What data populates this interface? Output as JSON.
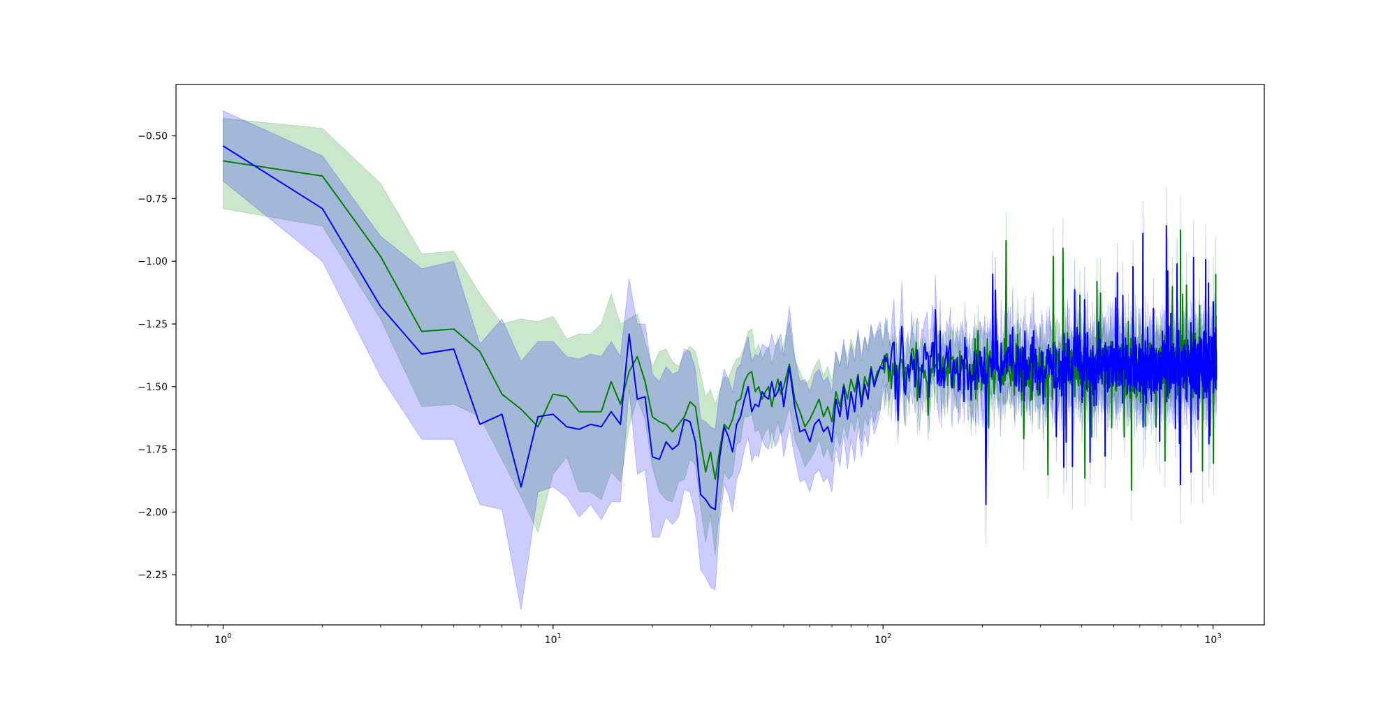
{
  "chart_data": {
    "type": "line",
    "title": "",
    "xlabel": "",
    "ylabel": "",
    "x_scale": "log",
    "xlim": [
      0.72,
      1430
    ],
    "ylim": [
      -2.45,
      -0.295
    ],
    "grid": false,
    "legend": "none",
    "y_ticks": [
      {
        "value": -0.5,
        "label": "−0.50"
      },
      {
        "value": -0.75,
        "label": "−0.75"
      },
      {
        "value": -1.0,
        "label": "−1.00"
      },
      {
        "value": -1.25,
        "label": "−1.25"
      },
      {
        "value": -1.5,
        "label": "−1.50"
      },
      {
        "value": -1.75,
        "label": "−1.75"
      },
      {
        "value": -2.0,
        "label": "−2.00"
      },
      {
        "value": -2.25,
        "label": "−2.25"
      }
    ],
    "x_ticks": [
      {
        "value": 1,
        "base": "10",
        "exp": "0"
      },
      {
        "value": 10,
        "base": "10",
        "exp": "1"
      },
      {
        "value": 100,
        "base": "10",
        "exp": "2"
      },
      {
        "value": 1000,
        "base": "10",
        "exp": "3"
      }
    ],
    "noise": {
      "start_x": 100,
      "end_x": 1024,
      "center": -1.42,
      "green": {
        "amplitude": 0.16,
        "band_halfwidth": 0.1,
        "seed": 7
      },
      "blue": {
        "amplitude": 0.19,
        "band_halfwidth": 0.12,
        "seed": 13
      }
    },
    "series": [
      {
        "color": "#008000",
        "band_color": "#008000",
        "band_opacity": 0.2,
        "x": [
          1,
          2,
          3,
          4,
          5,
          6,
          7,
          8,
          9,
          10,
          11,
          12,
          13,
          14,
          15,
          16,
          17,
          18,
          19,
          20,
          21,
          22,
          23,
          24,
          25,
          26,
          27,
          28,
          29,
          30,
          31,
          32,
          33,
          34,
          35,
          36,
          37,
          38,
          39,
          40,
          41,
          42,
          43,
          44,
          45,
          46,
          47,
          48,
          49,
          50,
          52,
          54,
          56,
          58,
          60,
          62,
          64,
          66,
          68,
          70,
          72,
          74,
          76,
          78,
          80,
          82,
          84,
          86,
          88,
          90,
          92,
          94,
          96,
          98
        ],
        "y": [
          -0.6,
          -0.66,
          -0.98,
          -1.28,
          -1.27,
          -1.36,
          -1.53,
          -1.59,
          -1.66,
          -1.53,
          -1.54,
          -1.6,
          -1.6,
          -1.6,
          -1.48,
          -1.57,
          -1.44,
          -1.38,
          -1.48,
          -1.62,
          -1.64,
          -1.65,
          -1.68,
          -1.65,
          -1.62,
          -1.56,
          -1.58,
          -1.72,
          -1.84,
          -1.76,
          -1.87,
          -1.75,
          -1.65,
          -1.67,
          -1.63,
          -1.56,
          -1.55,
          -1.48,
          -1.45,
          -1.44,
          -1.52,
          -1.5,
          -1.55,
          -1.52,
          -1.5,
          -1.58,
          -1.52,
          -1.47,
          -1.53,
          -1.5,
          -1.41,
          -1.55,
          -1.6,
          -1.66,
          -1.63,
          -1.59,
          -1.55,
          -1.62,
          -1.58,
          -1.64,
          -1.52,
          -1.58,
          -1.49,
          -1.55,
          -1.47,
          -1.52,
          -1.45,
          -1.56,
          -1.46,
          -1.5,
          -1.42,
          -1.49,
          -1.44,
          -1.43
        ],
        "upper": [
          -0.43,
          -0.47,
          -0.69,
          -0.97,
          -0.96,
          -1.13,
          -1.25,
          -1.23,
          -1.24,
          -1.22,
          -1.31,
          -1.29,
          -1.29,
          -1.25,
          -1.13,
          -1.25,
          -1.23,
          -1.21,
          -1.32,
          -1.42,
          -1.36,
          -1.35,
          -1.4,
          -1.42,
          -1.37,
          -1.34,
          -1.36,
          -1.45,
          -1.54,
          -1.51,
          -1.57,
          -1.52,
          -1.46,
          -1.47,
          -1.42,
          -1.39,
          -1.38,
          -1.34,
          -1.28,
          -1.27,
          -1.36,
          -1.33,
          -1.39,
          -1.36,
          -1.34,
          -1.41,
          -1.36,
          -1.3,
          -1.37,
          -1.33,
          -1.24,
          -1.39,
          -1.44,
          -1.49,
          -1.47,
          -1.42,
          -1.39,
          -1.46,
          -1.42,
          -1.48,
          -1.36,
          -1.42,
          -1.33,
          -1.39,
          -1.31,
          -1.36,
          -1.29,
          -1.4,
          -1.3,
          -1.34,
          -1.26,
          -1.33,
          -1.28,
          -1.27
        ],
        "lower": [
          -0.79,
          -0.86,
          -1.23,
          -1.58,
          -1.57,
          -1.62,
          -1.79,
          -1.94,
          -2.08,
          -1.85,
          -1.78,
          -1.92,
          -1.92,
          -1.95,
          -1.84,
          -1.88,
          -1.66,
          -1.55,
          -1.63,
          -1.82,
          -1.92,
          -1.95,
          -1.96,
          -1.88,
          -1.87,
          -1.79,
          -1.81,
          -1.98,
          -2.12,
          -2.01,
          -2.17,
          -1.98,
          -1.84,
          -1.87,
          -1.85,
          -1.73,
          -1.72,
          -1.62,
          -1.62,
          -1.61,
          -1.68,
          -1.67,
          -1.71,
          -1.68,
          -1.66,
          -1.75,
          -1.68,
          -1.64,
          -1.69,
          -1.67,
          -1.58,
          -1.71,
          -1.76,
          -1.82,
          -1.79,
          -1.76,
          -1.71,
          -1.78,
          -1.74,
          -1.8,
          -1.68,
          -1.74,
          -1.65,
          -1.71,
          -1.63,
          -1.68,
          -1.61,
          -1.72,
          -1.62,
          -1.66,
          -1.58,
          -1.65,
          -1.6,
          -1.59
        ]
      },
      {
        "color": "#0000ff",
        "band_color": "#0000ff",
        "band_opacity": 0.2,
        "x": [
          1,
          2,
          3,
          4,
          5,
          6,
          7,
          8,
          9,
          10,
          11,
          12,
          13,
          14,
          15,
          16,
          17,
          18,
          19,
          20,
          21,
          22,
          23,
          24,
          25,
          26,
          27,
          28,
          29,
          30,
          31,
          32,
          33,
          34,
          35,
          36,
          37,
          38,
          39,
          40,
          41,
          42,
          43,
          44,
          45,
          46,
          47,
          48,
          49,
          50,
          52,
          54,
          56,
          58,
          60,
          62,
          64,
          66,
          68,
          70,
          72,
          74,
          76,
          78,
          80,
          82,
          84,
          86,
          88,
          90,
          92,
          94,
          96,
          98
        ],
        "y": [
          -0.54,
          -0.79,
          -1.18,
          -1.37,
          -1.35,
          -1.65,
          -1.61,
          -1.9,
          -1.62,
          -1.61,
          -1.66,
          -1.67,
          -1.65,
          -1.66,
          -1.6,
          -1.65,
          -1.29,
          -1.55,
          -1.54,
          -1.78,
          -1.79,
          -1.72,
          -1.75,
          -1.73,
          -1.63,
          -1.64,
          -1.72,
          -1.93,
          -1.95,
          -1.98,
          -1.99,
          -1.78,
          -1.66,
          -1.7,
          -1.76,
          -1.65,
          -1.62,
          -1.55,
          -1.5,
          -1.6,
          -1.57,
          -1.58,
          -1.52,
          -1.54,
          -1.55,
          -1.48,
          -1.54,
          -1.52,
          -1.48,
          -1.58,
          -1.42,
          -1.58,
          -1.68,
          -1.67,
          -1.72,
          -1.65,
          -1.63,
          -1.68,
          -1.66,
          -1.72,
          -1.55,
          -1.62,
          -1.5,
          -1.63,
          -1.52,
          -1.6,
          -1.46,
          -1.58,
          -1.49,
          -1.55,
          -1.43,
          -1.5,
          -1.46,
          -1.42
        ],
        "upper": [
          -0.4,
          -0.58,
          -0.9,
          -1.03,
          -1.0,
          -1.33,
          -1.23,
          -1.4,
          -1.32,
          -1.32,
          -1.38,
          -1.39,
          -1.37,
          -1.38,
          -1.32,
          -1.38,
          -1.07,
          -1.25,
          -1.25,
          -1.45,
          -1.48,
          -1.42,
          -1.45,
          -1.44,
          -1.35,
          -1.36,
          -1.43,
          -1.63,
          -1.64,
          -1.66,
          -1.67,
          -1.52,
          -1.43,
          -1.47,
          -1.52,
          -1.43,
          -1.41,
          -1.35,
          -1.3,
          -1.4,
          -1.37,
          -1.38,
          -1.33,
          -1.34,
          -1.35,
          -1.29,
          -1.34,
          -1.32,
          -1.29,
          -1.38,
          -1.18,
          -1.38,
          -1.48,
          -1.47,
          -1.52,
          -1.45,
          -1.43,
          -1.48,
          -1.46,
          -1.52,
          -1.36,
          -1.42,
          -1.31,
          -1.43,
          -1.33,
          -1.4,
          -1.27,
          -1.38,
          -1.3,
          -1.36,
          -1.25,
          -1.31,
          -1.27,
          -1.24
        ],
        "lower": [
          -0.68,
          -1.0,
          -1.46,
          -1.71,
          -1.71,
          -1.97,
          -1.99,
          -2.39,
          -1.92,
          -1.9,
          -1.94,
          -2.02,
          -1.97,
          -2.03,
          -1.96,
          -1.96,
          -1.51,
          -1.85,
          -1.83,
          -2.1,
          -2.1,
          -2.02,
          -2.05,
          -2.02,
          -1.91,
          -1.92,
          -2.01,
          -2.23,
          -2.26,
          -2.3,
          -2.31,
          -2.04,
          -1.89,
          -1.93,
          -2.0,
          -1.87,
          -1.83,
          -1.75,
          -1.7,
          -1.8,
          -1.77,
          -1.78,
          -1.71,
          -1.74,
          -1.75,
          -1.67,
          -1.74,
          -1.72,
          -1.67,
          -1.78,
          -1.66,
          -1.78,
          -1.88,
          -1.87,
          -1.92,
          -1.85,
          -1.83,
          -1.88,
          -1.86,
          -1.92,
          -1.74,
          -1.82,
          -1.69,
          -1.83,
          -1.71,
          -1.8,
          -1.65,
          -1.78,
          -1.68,
          -1.74,
          -1.61,
          -1.69,
          -1.65,
          -1.6
        ]
      }
    ]
  }
}
